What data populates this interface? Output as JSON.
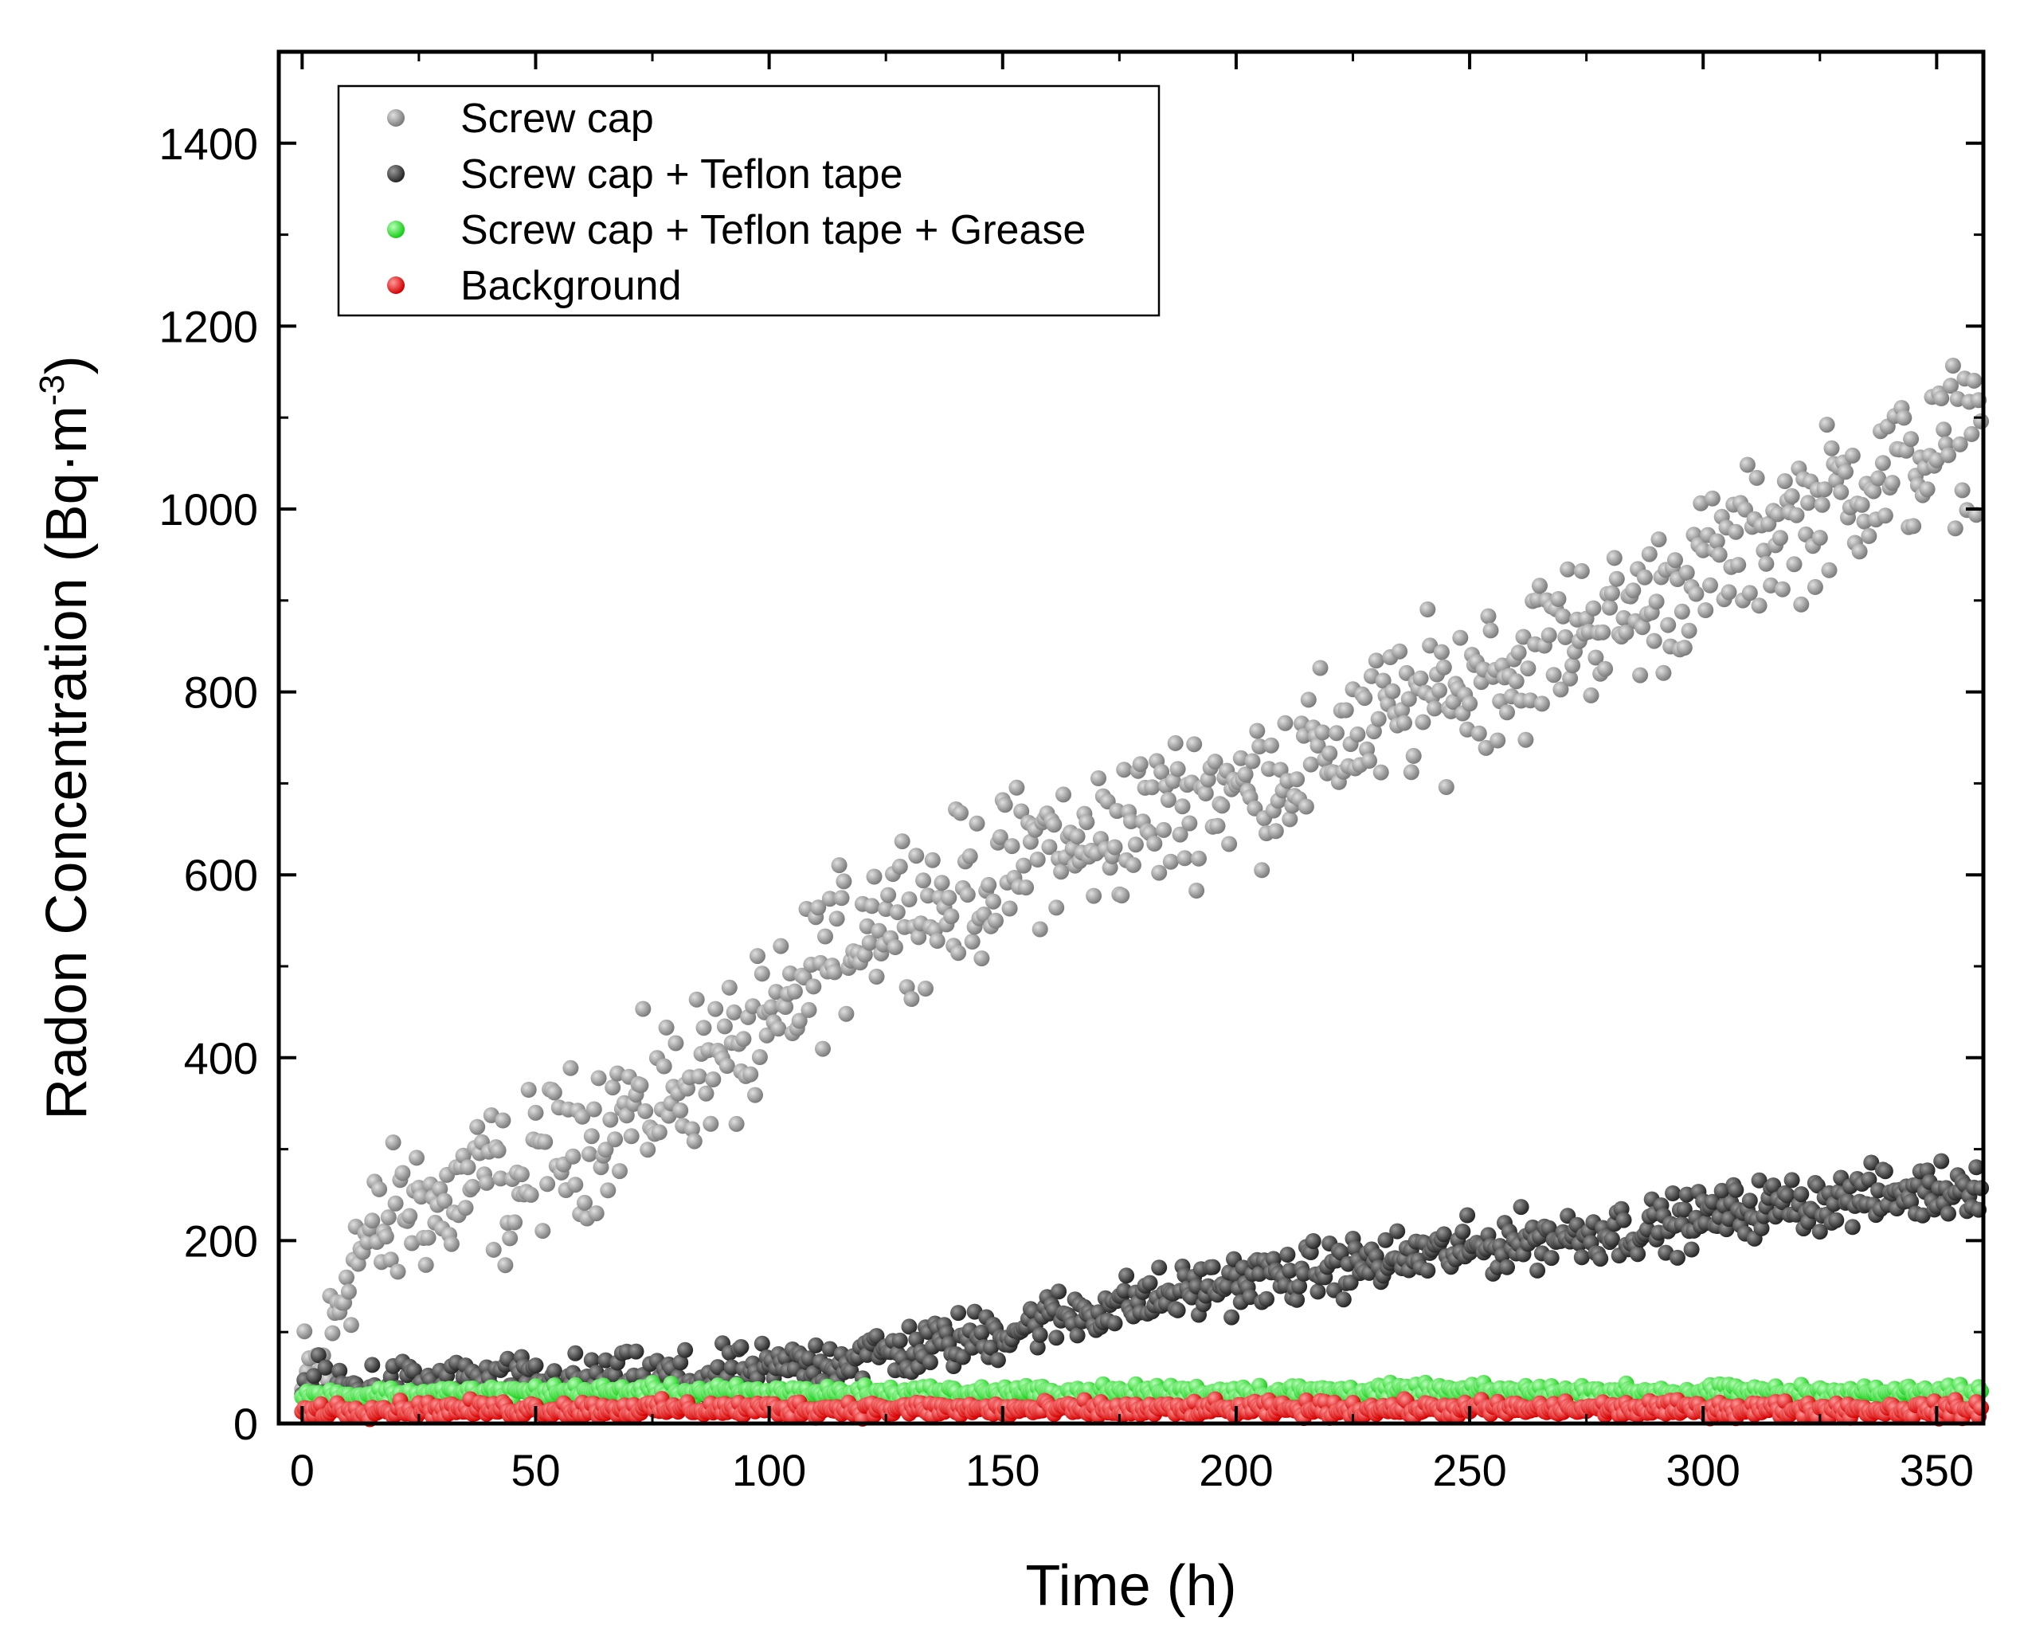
{
  "chart_data": {
    "type": "scatter",
    "title": "",
    "xlabel": "Time (h)",
    "ylabel_main": "Radon Concentration (Bq·m",
    "ylabel_sup": "-3",
    "ylabel_close": ")",
    "xlim": [
      -5,
      360
    ],
    "ylim": [
      0,
      1500
    ],
    "xticks": [
      0,
      50,
      100,
      150,
      200,
      250,
      300,
      350
    ],
    "xtick_labels": [
      "0",
      "50",
      "100",
      "150",
      "200",
      "250",
      "300",
      "350"
    ],
    "yticks": [
      0,
      200,
      400,
      600,
      800,
      1000,
      1200,
      1400
    ],
    "ytick_labels": [
      "0",
      "200",
      "400",
      "600",
      "800",
      "1000",
      "1200",
      "1400"
    ],
    "legend_position": "top-left",
    "grid": false,
    "series": [
      {
        "name": "Screw cap",
        "color": "#8c8c8c",
        "x": [
          0,
          5,
          10,
          15,
          20,
          25,
          30,
          35,
          40,
          45,
          50,
          55,
          60,
          65,
          70,
          75,
          80,
          85,
          90,
          95,
          100,
          105,
          110,
          115,
          120,
          125,
          130,
          135,
          140,
          145,
          150,
          155,
          160,
          165,
          170,
          175,
          180,
          185,
          190,
          195,
          200,
          205,
          210,
          215,
          220,
          225,
          230,
          235,
          240,
          245,
          250,
          255,
          260,
          265,
          270,
          275,
          280,
          285,
          290,
          295,
          300,
          305,
          310,
          315,
          320,
          325,
          330,
          335,
          340,
          345,
          350,
          355,
          360
        ],
        "values": [
          30,
          60,
          180,
          200,
          220,
          250,
          230,
          260,
          270,
          250,
          290,
          300,
          310,
          330,
          340,
          350,
          370,
          390,
          400,
          410,
          420,
          460,
          500,
          520,
          550,
          560,
          580,
          560,
          580,
          590,
          600,
          620,
          640,
          620,
          640,
          650,
          660,
          670,
          680,
          700,
          690,
          700,
          720,
          720,
          740,
          760,
          760,
          780,
          790,
          800,
          810,
          830,
          820,
          850,
          860,
          880,
          870,
          890,
          900,
          920,
          930,
          950,
          960,
          980,
          990,
          1000,
          1020,
          1030,
          1040,
          1050,
          1060,
          1080,
          1100
        ],
        "spread": 120
      },
      {
        "name": "Screw cap + Teflon tape",
        "color": "#3a3a3a",
        "x": [
          0,
          10,
          20,
          30,
          40,
          50,
          60,
          70,
          80,
          90,
          100,
          110,
          120,
          130,
          140,
          150,
          160,
          170,
          180,
          190,
          200,
          210,
          220,
          230,
          240,
          250,
          260,
          270,
          280,
          290,
          300,
          310,
          320,
          330,
          340,
          350,
          360
        ],
        "values": [
          35,
          38,
          40,
          40,
          42,
          42,
          45,
          45,
          48,
          50,
          55,
          65,
          75,
          80,
          90,
          100,
          115,
          125,
          135,
          145,
          155,
          160,
          170,
          175,
          185,
          190,
          200,
          205,
          210,
          215,
          225,
          235,
          240,
          245,
          250,
          255,
          265
        ],
        "spread": 45
      },
      {
        "name": "Screw cap + Teflon tape + Grease",
        "color": "#22e622",
        "x": [
          0,
          60,
          120,
          180,
          240,
          300,
          360
        ],
        "values": [
          30,
          35,
          33,
          34,
          35,
          34,
          33
        ],
        "spread": 12
      },
      {
        "name": "Background",
        "color": "#ee0000",
        "x": [
          0,
          60,
          120,
          180,
          240,
          300,
          360
        ],
        "values": [
          15,
          16,
          16,
          15,
          16,
          16,
          15
        ],
        "spread": 13
      }
    ]
  }
}
